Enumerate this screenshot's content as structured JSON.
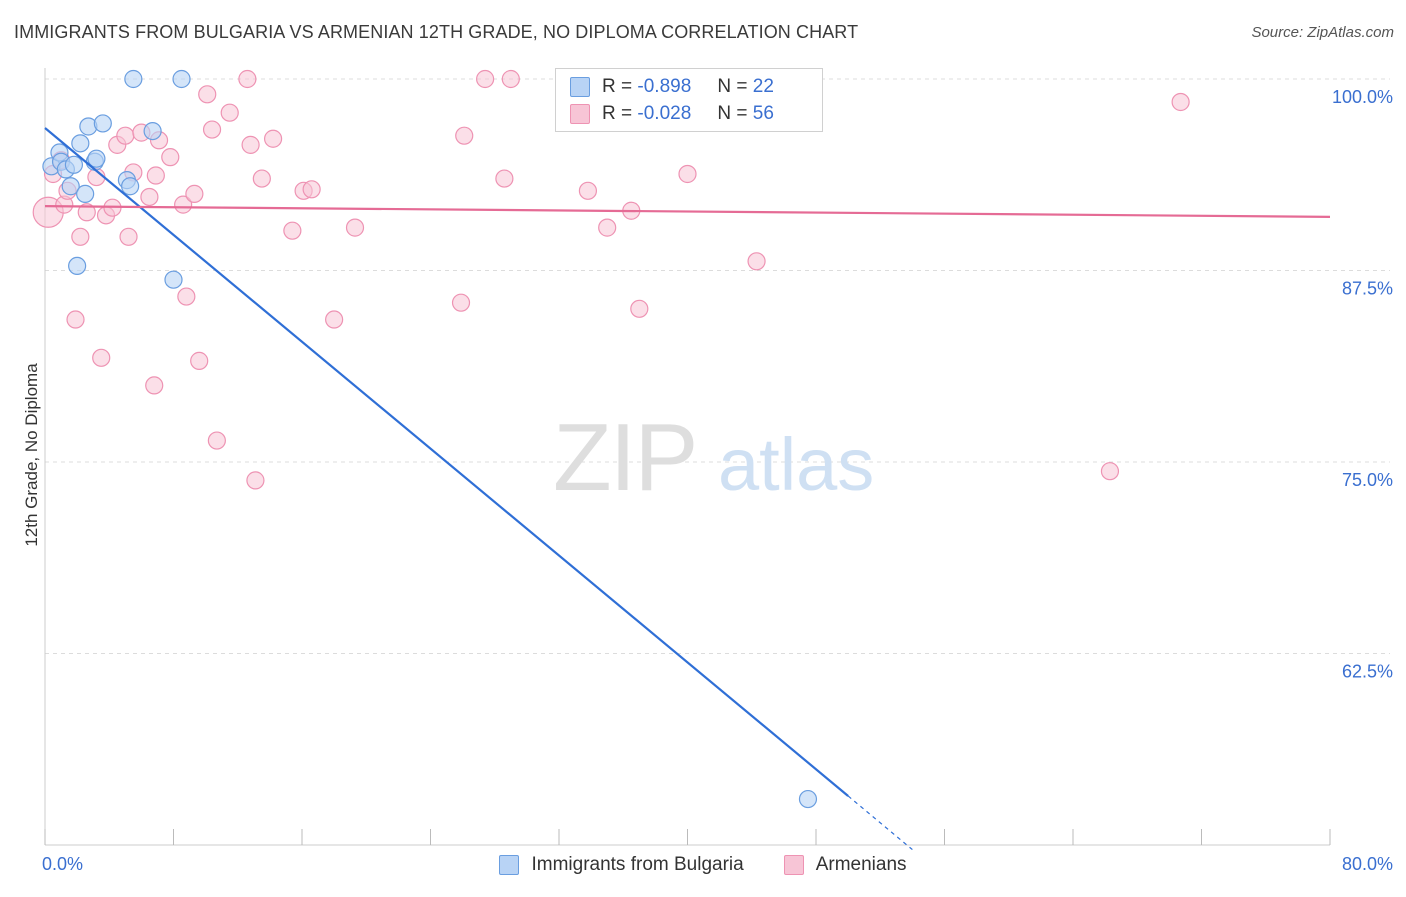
{
  "title": "IMMIGRANTS FROM BULGARIA VS ARMENIAN 12TH GRADE, NO DIPLOMA CORRELATION CHART",
  "source": "Source: ZipAtlas.com",
  "watermark": {
    "zip": "ZIP",
    "atlas": "atlas"
  },
  "legend": {
    "rows": [
      {
        "r_label": "R =",
        "r_value": "-0.898",
        "n_label": "N =",
        "n_value": "22"
      },
      {
        "r_label": "R =",
        "r_value": "-0.028",
        "n_label": "N =",
        "n_value": "56"
      }
    ]
  },
  "bottom_legend": [
    "Immigrants from Bulgaria",
    "Armenians"
  ],
  "colors": {
    "blue_fill": "#b8d3f5",
    "blue_stroke": "#6a9ee0",
    "blue_line": "#2f6fd6",
    "pink_fill": "#f7c5d6",
    "pink_stroke": "#ee93b3",
    "pink_line": "#e56b95",
    "axis_label": "#3a6fd0",
    "grid": "#dcdcdc"
  },
  "chart_data": {
    "type": "scatter",
    "title": "IMMIGRANTS FROM BULGARIA VS ARMENIAN 12TH GRADE, NO DIPLOMA CORRELATION CHART",
    "xlabel": "",
    "ylabel": "12th Grade, No Diploma",
    "xlim": [
      0,
      80
    ],
    "ylim": [
      50,
      100
    ],
    "x_tick_labels": [
      "0.0%",
      "80.0%"
    ],
    "y_ticks": [
      100,
      87.5,
      75,
      62.5
    ],
    "y_tick_labels": [
      "100.0%",
      "87.5%",
      "75.0%",
      "62.5%"
    ],
    "grid": true,
    "legend_position": "top-center",
    "series": [
      {
        "name": "Immigrants from Bulgaria",
        "r": -0.898,
        "n": 22,
        "points": [
          [
            0.4,
            94.3
          ],
          [
            0.9,
            95.2
          ],
          [
            1.0,
            94.6
          ],
          [
            1.3,
            94.1
          ],
          [
            1.6,
            93.0
          ],
          [
            1.8,
            94.4
          ],
          [
            2.0,
            87.8
          ],
          [
            2.2,
            95.8
          ],
          [
            2.5,
            92.5
          ],
          [
            2.7,
            96.9
          ],
          [
            3.1,
            94.6
          ],
          [
            3.2,
            94.8
          ],
          [
            3.6,
            97.1
          ],
          [
            5.1,
            93.4
          ],
          [
            5.3,
            93.0
          ],
          [
            5.5,
            100.0
          ],
          [
            6.7,
            96.6
          ],
          [
            8.0,
            86.9
          ],
          [
            8.5,
            100.0
          ],
          [
            47.5,
            53.0
          ]
        ],
        "trend": {
          "x0": 0.0,
          "y0": 96.8,
          "x1": 50.0,
          "y1": 53.2,
          "x_dash_end": 54.0,
          "y_dash_end": 49.7
        }
      },
      {
        "name": "Armenians",
        "r": -0.028,
        "n": 56,
        "points": [
          [
            0.2,
            91.3
          ],
          [
            0.5,
            93.8
          ],
          [
            1.0,
            94.7
          ],
          [
            1.2,
            91.8
          ],
          [
            1.4,
            92.7
          ],
          [
            1.9,
            84.3
          ],
          [
            2.2,
            89.7
          ],
          [
            2.6,
            91.3
          ],
          [
            3.2,
            93.6
          ],
          [
            3.5,
            81.8
          ],
          [
            3.8,
            91.1
          ],
          [
            4.2,
            91.6
          ],
          [
            4.5,
            95.7
          ],
          [
            5.0,
            96.3
          ],
          [
            5.2,
            89.7
          ],
          [
            5.5,
            93.9
          ],
          [
            6.0,
            96.5
          ],
          [
            6.5,
            92.3
          ],
          [
            6.8,
            80.0
          ],
          [
            6.9,
            93.7
          ],
          [
            7.1,
            96.0
          ],
          [
            7.8,
            94.9
          ],
          [
            8.6,
            91.8
          ],
          [
            8.8,
            85.8
          ],
          [
            9.3,
            92.5
          ],
          [
            9.6,
            81.6
          ],
          [
            10.1,
            99.0
          ],
          [
            10.4,
            96.7
          ],
          [
            10.7,
            76.4
          ],
          [
            11.5,
            97.8
          ],
          [
            12.6,
            100.0
          ],
          [
            12.8,
            95.7
          ],
          [
            13.1,
            73.8
          ],
          [
            13.5,
            93.5
          ],
          [
            14.2,
            96.1
          ],
          [
            15.4,
            90.1
          ],
          [
            16.1,
            92.7
          ],
          [
            16.6,
            92.8
          ],
          [
            18.0,
            84.3
          ],
          [
            19.3,
            90.3
          ],
          [
            25.9,
            85.4
          ],
          [
            26.1,
            96.3
          ],
          [
            27.4,
            100.0
          ],
          [
            28.6,
            93.5
          ],
          [
            29.0,
            100.0
          ],
          [
            32.8,
            100.0
          ],
          [
            33.8,
            92.7
          ],
          [
            35.0,
            90.3
          ],
          [
            36.5,
            91.4
          ],
          [
            37.0,
            85.0
          ],
          [
            40.0,
            93.8
          ],
          [
            44.3,
            88.1
          ],
          [
            66.3,
            74.4
          ],
          [
            70.7,
            98.5
          ]
        ],
        "trend": {
          "x0": 0.0,
          "y0": 91.7,
          "x1": 80.0,
          "y1": 91.0
        }
      }
    ]
  }
}
